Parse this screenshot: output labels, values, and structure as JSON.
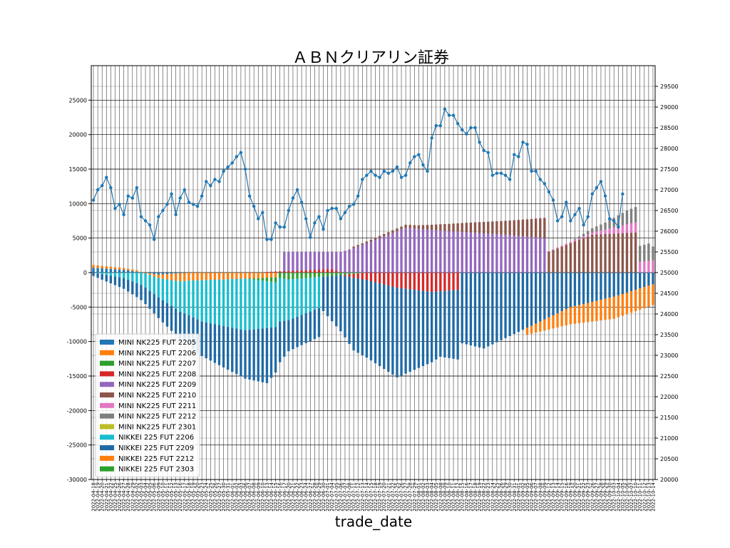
{
  "chart_data": {
    "type": "bar",
    "title": "ＡＢＮクリアリン証券",
    "xlabel": "trade_date",
    "ylabel": "",
    "ylim": [
      -30000,
      30000
    ],
    "yticks": [
      -30000,
      -25000,
      -20000,
      -15000,
      -10000,
      -5000,
      0,
      5000,
      10000,
      15000,
      20000,
      25000
    ],
    "y2lim": [
      20000,
      30000
    ],
    "y2ticks": [
      20000,
      20500,
      21000,
      21500,
      22000,
      22500,
      23000,
      23500,
      24000,
      24500,
      25000,
      25500,
      26000,
      26500,
      27000,
      27500,
      28000,
      28500,
      29000,
      29500
    ],
    "grid": true,
    "legend_position": "lower-left",
    "start_date": "2022-04-18",
    "end_date": "2022-10-14",
    "stacked": true,
    "series": [
      {
        "name": "MINI NK225 FUT 2205",
        "color": "#1f77b4",
        "end": 22,
        "segments": [
          [
            0,
            700
          ],
          [
            7,
            400
          ],
          [
            15,
            -300
          ],
          [
            22,
            0
          ]
        ]
      },
      {
        "name": "MINI NK225 FUT 2206",
        "color": "#ff7f0e",
        "end": 42,
        "segments": [
          [
            0,
            400
          ],
          [
            10,
            200
          ],
          [
            20,
            -1200
          ],
          [
            30,
            -1000
          ],
          [
            42,
            -700
          ]
        ]
      },
      {
        "name": "MINI NK225 FUT 2207",
        "color": "#2ca02c",
        "end": 63,
        "segments": [
          [
            35,
            0
          ],
          [
            45,
            -1000
          ],
          [
            55,
            -500
          ],
          [
            63,
            0
          ]
        ]
      },
      {
        "name": "MINI NK225 FUT 2208",
        "color": "#d62728",
        "end": 84,
        "segments": [
          [
            40,
            100
          ],
          [
            55,
            500
          ],
          [
            60,
            -600
          ],
          [
            70,
            -2200
          ],
          [
            78,
            -2800
          ],
          [
            84,
            -2500
          ]
        ]
      },
      {
        "name": "MINI NK225 FUT 2209",
        "color": "#9467bd",
        "end": 104,
        "segments": [
          [
            44,
            2800
          ],
          [
            55,
            2500
          ],
          [
            62,
            4000
          ],
          [
            72,
            6500
          ],
          [
            82,
            6000
          ],
          [
            95,
            5500
          ],
          [
            104,
            5000
          ]
        ]
      },
      {
        "name": "MINI NK225 FUT 2210",
        "color": "#8c564b",
        "end": 125,
        "segments": [
          [
            60,
            200
          ],
          [
            75,
            500
          ],
          [
            85,
            1300
          ],
          [
            95,
            2000
          ],
          [
            105,
            3000
          ],
          [
            115,
            5500
          ],
          [
            125,
            5800
          ]
        ]
      },
      {
        "name": "MINI NK225 FUT 2211",
        "color": "#e377c2",
        "end": 147,
        "segments": [
          [
            100,
            0
          ],
          [
            115,
            300
          ],
          [
            125,
            1500
          ],
          [
            135,
            2200
          ],
          [
            147,
            800
          ]
        ]
      },
      {
        "name": "MINI NK225 FUT 2212",
        "color": "#7f7f7f",
        "end": 178,
        "segments": [
          [
            110,
            0
          ],
          [
            118,
            1000
          ],
          [
            123,
            2000
          ],
          [
            128,
            2500
          ],
          [
            133,
            0
          ],
          [
            140,
            -3000
          ],
          [
            150,
            -5000
          ],
          [
            160,
            -10000
          ],
          [
            170,
            -12000
          ],
          [
            178,
            -8000
          ]
        ]
      },
      {
        "name": "MINI NK225 FUT 2301",
        "color": "#bcbd22",
        "end": 178,
        "segments": [
          [
            150,
            0
          ],
          [
            160,
            -100
          ],
          [
            170,
            -400
          ],
          [
            178,
            700
          ]
        ]
      },
      {
        "name": "NIKKEI 225 FUT 2206",
        "color": "#17becf",
        "end": 52,
        "segments": [
          [
            0,
            0
          ],
          [
            7,
            -800
          ],
          [
            15,
            -2800
          ],
          [
            25,
            -6000
          ],
          [
            35,
            -7500
          ],
          [
            42,
            -6500
          ],
          [
            52,
            -4500
          ]
        ]
      },
      {
        "name": "NIKKEI 225 FUT 2209",
        "color": "#1f6aa5",
        "end": 146,
        "segments": [
          [
            0,
            -500
          ],
          [
            10,
            -2000
          ],
          [
            20,
            -4000
          ],
          [
            30,
            -6000
          ],
          [
            40,
            -8000
          ],
          [
            45,
            -4500
          ],
          [
            52,
            -4200
          ],
          [
            60,
            -10500
          ],
          [
            70,
            -13000
          ],
          [
            80,
            -9500
          ],
          [
            90,
            -11000
          ],
          [
            100,
            -8000
          ],
          [
            110,
            -5000
          ],
          [
            120,
            -3500
          ],
          [
            130,
            -1500
          ],
          [
            140,
            -1000
          ],
          [
            146,
            0
          ]
        ]
      },
      {
        "name": "NIKKEI 225 FUT 2212",
        "color": "#ff7f0e",
        "end": 178,
        "segments": [
          [
            100,
            -1000
          ],
          [
            110,
            -2500
          ],
          [
            120,
            -3200
          ],
          [
            130,
            -3000
          ],
          [
            138,
            -6500
          ],
          [
            145,
            -8000
          ],
          [
            150,
            -4000
          ],
          [
            158,
            -6000
          ],
          [
            165,
            -9000
          ],
          [
            172,
            -2500
          ],
          [
            178,
            -200
          ]
        ]
      },
      {
        "name": "NIKKEI 225 FUT 2303",
        "color": "#2ca02c",
        "end": 178,
        "segments": [
          [
            130,
            0
          ],
          [
            138,
            -1500
          ],
          [
            145,
            -2000
          ],
          [
            152,
            -4000
          ],
          [
            160,
            -4500
          ],
          [
            170,
            -3000
          ],
          [
            178,
            -1000
          ]
        ]
      }
    ],
    "price_series": {
      "color": "#1f77b4",
      "points": [
        [
          0,
          26750
        ],
        [
          1,
          27000
        ],
        [
          2,
          27100
        ],
        [
          3,
          27300
        ],
        [
          4,
          27050
        ],
        [
          5,
          26550
        ],
        [
          6,
          26650
        ],
        [
          7,
          26400
        ],
        [
          8,
          26850
        ],
        [
          9,
          26800
        ],
        [
          10,
          27050
        ],
        [
          11,
          26350
        ],
        [
          12,
          26250
        ],
        [
          13,
          26150
        ],
        [
          14,
          25800
        ],
        [
          15,
          26350
        ],
        [
          16,
          26500
        ],
        [
          17,
          26650
        ],
        [
          18,
          26900
        ],
        [
          19,
          26400
        ],
        [
          20,
          26800
        ],
        [
          21,
          27000
        ],
        [
          22,
          26700
        ],
        [
          23,
          26650
        ],
        [
          24,
          26600
        ],
        [
          25,
          26850
        ],
        [
          26,
          27200
        ],
        [
          27,
          27100
        ],
        [
          28,
          27250
        ],
        [
          29,
          27200
        ],
        [
          30,
          27450
        ],
        [
          31,
          27550
        ],
        [
          32,
          27650
        ],
        [
          33,
          27800
        ],
        [
          34,
          27900
        ],
        [
          35,
          27500
        ],
        [
          36,
          26850
        ],
        [
          37,
          26600
        ],
        [
          38,
          26300
        ],
        [
          39,
          26450
        ],
        [
          40,
          25800
        ],
        [
          41,
          25800
        ],
        [
          42,
          26200
        ],
        [
          43,
          26100
        ],
        [
          44,
          26100
        ],
        [
          45,
          26500
        ],
        [
          46,
          26800
        ],
        [
          47,
          27000
        ],
        [
          48,
          26700
        ],
        [
          49,
          26300
        ],
        [
          50,
          25850
        ],
        [
          51,
          26200
        ],
        [
          52,
          26350
        ],
        [
          53,
          26050
        ],
        [
          54,
          26500
        ],
        [
          55,
          26550
        ],
        [
          56,
          26550
        ],
        [
          57,
          26300
        ],
        [
          58,
          26450
        ],
        [
          59,
          26600
        ],
        [
          60,
          26650
        ],
        [
          61,
          26850
        ],
        [
          62,
          27250
        ],
        [
          63,
          27350
        ],
        [
          64,
          27450
        ],
        [
          65,
          27350
        ],
        [
          66,
          27300
        ],
        [
          67,
          27450
        ],
        [
          68,
          27400
        ],
        [
          69,
          27450
        ],
        [
          70,
          27550
        ],
        [
          71,
          27300
        ],
        [
          72,
          27350
        ],
        [
          73,
          27650
        ],
        [
          74,
          27800
        ],
        [
          75,
          27850
        ],
        [
          76,
          27600
        ],
        [
          77,
          27450
        ],
        [
          78,
          28250
        ],
        [
          79,
          28550
        ],
        [
          80,
          28550
        ],
        [
          81,
          28950
        ],
        [
          82,
          28800
        ],
        [
          83,
          28800
        ],
        [
          84,
          28600
        ],
        [
          85,
          28450
        ],
        [
          86,
          28350
        ],
        [
          87,
          28500
        ],
        [
          88,
          28500
        ],
        [
          89,
          28150
        ],
        [
          90,
          27950
        ],
        [
          91,
          27900
        ],
        [
          92,
          27350
        ],
        [
          93,
          27400
        ],
        [
          94,
          27400
        ],
        [
          95,
          27350
        ],
        [
          96,
          27250
        ],
        [
          97,
          27850
        ],
        [
          98,
          27800
        ],
        [
          99,
          28150
        ],
        [
          100,
          28100
        ],
        [
          101,
          27450
        ],
        [
          102,
          27450
        ],
        [
          103,
          27250
        ],
        [
          104,
          27150
        ],
        [
          105,
          26950
        ],
        [
          106,
          26750
        ],
        [
          107,
          26250
        ],
        [
          108,
          26350
        ],
        [
          109,
          26700
        ],
        [
          110,
          26250
        ],
        [
          111,
          26400
        ],
        [
          112,
          26550
        ],
        [
          113,
          26150
        ],
        [
          114,
          26350
        ],
        [
          115,
          26900
        ],
        [
          116,
          27050
        ],
        [
          117,
          27200
        ],
        [
          118,
          26850
        ],
        [
          119,
          26300
        ],
        [
          120,
          26250
        ],
        [
          121,
          26100
        ],
        [
          122,
          26900
        ]
      ]
    }
  }
}
